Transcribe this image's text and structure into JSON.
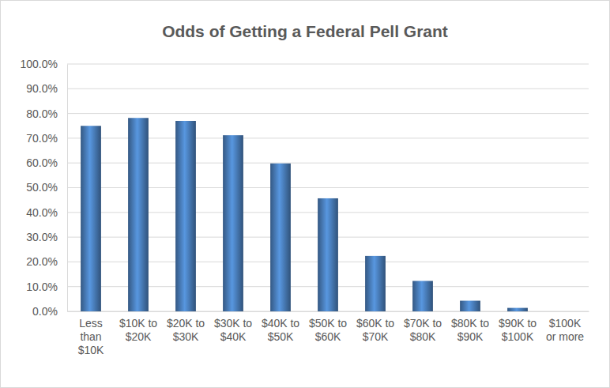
{
  "chart_data": {
    "type": "bar",
    "title": "Odds of Getting a Federal Pell Grant",
    "categories": [
      "Less than $10K",
      "$10K to $20K",
      "$20K to $30K",
      "$30K to $40K",
      "$40K to $50K",
      "$50K to $60K",
      "$60K to $70K",
      "$70K to $80K",
      "$80K to $90K",
      "$90K to $100K",
      "$100K or more"
    ],
    "values": [
      75.0,
      78.2,
      77.0,
      71.2,
      59.8,
      45.7,
      22.4,
      12.3,
      4.3,
      1.4,
      0
    ],
    "color": "#4a7ebb",
    "ylim": [
      0,
      100
    ],
    "yticks": [
      {
        "value": 0,
        "label": "0.0%"
      },
      {
        "value": 10,
        "label": "10.0%"
      },
      {
        "value": 20,
        "label": "20.0%"
      },
      {
        "value": 30,
        "label": "30.0%"
      },
      {
        "value": 40,
        "label": "40.0%"
      },
      {
        "value": 50,
        "label": "50.0%"
      },
      {
        "value": 60,
        "label": "60.0%"
      },
      {
        "value": 70,
        "label": "70.0%"
      },
      {
        "value": 80,
        "label": "80.0%"
      },
      {
        "value": 90,
        "label": "90.0%"
      },
      {
        "value": 100,
        "label": "100.0%"
      }
    ],
    "grid": true
  }
}
